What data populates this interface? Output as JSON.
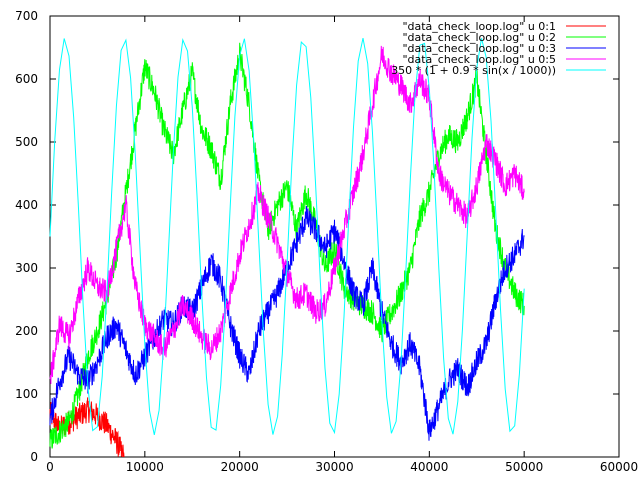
{
  "chart_data": {
    "type": "line",
    "title": "",
    "xlabel": "",
    "ylabel": "",
    "xlim": [
      0,
      60000
    ],
    "ylim": [
      0,
      700
    ],
    "x_ticks": [
      0,
      10000,
      20000,
      30000,
      40000,
      50000,
      60000
    ],
    "y_ticks": [
      0,
      100,
      200,
      300,
      400,
      500,
      600,
      700
    ],
    "grid": false,
    "legend_position": "top-right",
    "series": [
      {
        "name": "\"data_check_loop.log\" u 0:1",
        "color": "#ff0000",
        "x": [
          0,
          1000,
          2000,
          3000,
          4000,
          5000,
          6000,
          7000,
          7800
        ],
        "y": [
          70,
          45,
          55,
          65,
          75,
          65,
          50,
          25,
          0
        ]
      },
      {
        "name": "\"data_check_loop.log\" u 0:2",
        "color": "#00ff00",
        "x": [
          0,
          1000,
          2000,
          3000,
          4000,
          5000,
          6000,
          7000,
          8000,
          9000,
          10000,
          11000,
          12000,
          13000,
          14000,
          15000,
          16000,
          17000,
          18000,
          19000,
          20000,
          21000,
          22000,
          23000,
          24000,
          25000,
          26000,
          27000,
          28000,
          29000,
          30000,
          31000,
          32000,
          33000,
          34000,
          35000,
          36000,
          37000,
          38000,
          39000,
          40000,
          41000,
          42000,
          43000,
          44000,
          45000,
          46000,
          47000,
          48000,
          49000,
          50000
        ],
        "y": [
          25,
          40,
          55,
          100,
          160,
          200,
          250,
          320,
          420,
          520,
          620,
          580,
          520,
          480,
          550,
          610,
          520,
          490,
          440,
          560,
          640,
          560,
          440,
          360,
          400,
          430,
          360,
          420,
          370,
          300,
          330,
          270,
          250,
          240,
          230,
          200,
          230,
          260,
          300,
          380,
          420,
          480,
          510,
          500,
          540,
          600,
          480,
          360,
          300,
          260,
          240
        ]
      },
      {
        "name": "\"data_check_loop.log\" u 0:3",
        "color": "#0000ff",
        "x": [
          0,
          1000,
          2000,
          3000,
          4000,
          5000,
          6000,
          7000,
          8000,
          9000,
          10000,
          11000,
          12000,
          13000,
          14000,
          15000,
          16000,
          17000,
          18000,
          19000,
          20000,
          21000,
          22000,
          23000,
          24000,
          25000,
          26000,
          27000,
          28000,
          29000,
          30000,
          31000,
          32000,
          33000,
          34000,
          35000,
          36000,
          37000,
          38000,
          39000,
          40000,
          41000,
          42000,
          43000,
          44000,
          45000,
          46000,
          47000,
          48000,
          49000,
          50000
        ],
        "y": [
          60,
          120,
          160,
          130,
          120,
          150,
          190,
          210,
          170,
          130,
          160,
          190,
          220,
          210,
          240,
          230,
          270,
          310,
          280,
          210,
          160,
          130,
          200,
          230,
          260,
          300,
          340,
          380,
          360,
          330,
          360,
          310,
          260,
          240,
          300,
          230,
          180,
          150,
          180,
          140,
          40,
          80,
          120,
          140,
          110,
          150,
          180,
          250,
          300,
          320,
          350
        ]
      },
      {
        "name": "\"data_check_loop.log\" u 0:5",
        "color": "#ff00ff",
        "x": [
          0,
          1000,
          2000,
          3000,
          4000,
          5000,
          6000,
          7000,
          8000,
          9000,
          10000,
          11000,
          12000,
          13000,
          14000,
          15000,
          16000,
          17000,
          18000,
          19000,
          20000,
          21000,
          22000,
          23000,
          24000,
          25000,
          26000,
          27000,
          28000,
          29000,
          30000,
          31000,
          32000,
          33000,
          34000,
          35000,
          36000,
          37000,
          38000,
          39000,
          40000,
          41000,
          42000,
          43000,
          44000,
          45000,
          46000,
          47000,
          48000,
          49000,
          50000
        ],
        "y": [
          120,
          210,
          190,
          250,
          300,
          270,
          260,
          330,
          400,
          270,
          210,
          190,
          170,
          200,
          240,
          220,
          190,
          170,
          200,
          260,
          320,
          370,
          420,
          380,
          340,
          290,
          250,
          260,
          230,
          240,
          300,
          360,
          420,
          480,
          560,
          640,
          610,
          590,
          560,
          600,
          570,
          450,
          420,
          400,
          380,
          430,
          500,
          470,
          430,
          450,
          420
        ]
      },
      {
        "name": "350 * (1 + 0.9 * sin(x / 1000))",
        "color": "#00ffff",
        "function": "350 * (1 + 0.9 * sin(x / 1000))",
        "x_range": [
          0,
          50000
        ],
        "samples": 100
      }
    ]
  }
}
